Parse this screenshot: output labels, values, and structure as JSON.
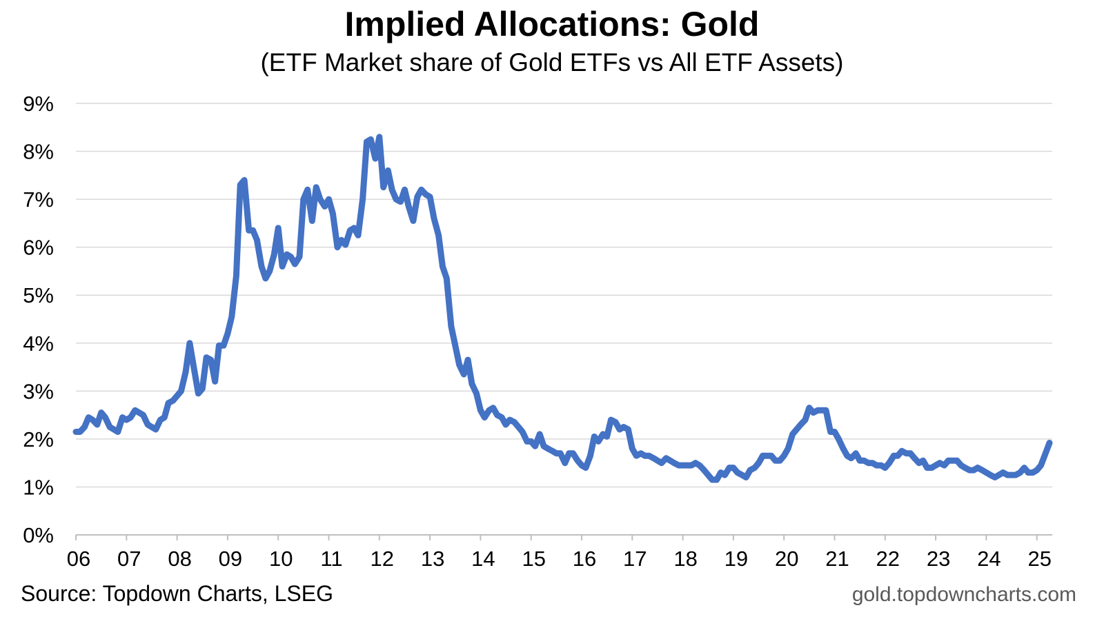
{
  "chart_data": {
    "type": "line",
    "title": "Implied Allocations: Gold",
    "subtitle": "(ETF Market share of Gold ETFs vs All ETF Assets)",
    "source": "Source: Topdown Charts, LSEG",
    "website": "gold.topdowncharts.com",
    "xlabel": "",
    "ylabel": "",
    "x_tick_labels": [
      "06",
      "07",
      "08",
      "09",
      "10",
      "11",
      "12",
      "13",
      "14",
      "15",
      "16",
      "17",
      "18",
      "19",
      "20",
      "21",
      "22",
      "23",
      "24",
      "25"
    ],
    "y_tick_labels": [
      "0%",
      "1%",
      "2%",
      "3%",
      "4%",
      "5%",
      "6%",
      "7%",
      "8%",
      "9%"
    ],
    "ylim": [
      0,
      9
    ],
    "xlim": [
      2006.0,
      2025.3
    ],
    "grid": "horizontal",
    "line_color": "#4472C4",
    "series": [
      {
        "points": [
          [
            2006.0,
            2.15
          ],
          [
            2006.08,
            2.15
          ],
          [
            2006.17,
            2.25
          ],
          [
            2006.25,
            2.45
          ],
          [
            2006.33,
            2.4
          ],
          [
            2006.42,
            2.3
          ],
          [
            2006.5,
            2.55
          ],
          [
            2006.58,
            2.45
          ],
          [
            2006.67,
            2.25
          ],
          [
            2006.75,
            2.2
          ],
          [
            2006.83,
            2.15
          ],
          [
            2006.92,
            2.45
          ],
          [
            2007.0,
            2.4
          ],
          [
            2007.08,
            2.45
          ],
          [
            2007.17,
            2.6
          ],
          [
            2007.25,
            2.55
          ],
          [
            2007.33,
            2.5
          ],
          [
            2007.42,
            2.3
          ],
          [
            2007.5,
            2.25
          ],
          [
            2007.58,
            2.2
          ],
          [
            2007.67,
            2.4
          ],
          [
            2007.75,
            2.45
          ],
          [
            2007.83,
            2.75
          ],
          [
            2007.92,
            2.8
          ],
          [
            2008.0,
            2.9
          ],
          [
            2008.08,
            3.0
          ],
          [
            2008.17,
            3.4
          ],
          [
            2008.25,
            4.0
          ],
          [
            2008.33,
            3.5
          ],
          [
            2008.42,
            2.95
          ],
          [
            2008.5,
            3.05
          ],
          [
            2008.58,
            3.7
          ],
          [
            2008.67,
            3.65
          ],
          [
            2008.75,
            3.2
          ],
          [
            2008.83,
            3.95
          ],
          [
            2008.92,
            3.95
          ],
          [
            2009.0,
            4.2
          ],
          [
            2009.08,
            4.55
          ],
          [
            2009.17,
            5.4
          ],
          [
            2009.25,
            7.3
          ],
          [
            2009.33,
            7.4
          ],
          [
            2009.42,
            6.35
          ],
          [
            2009.5,
            6.35
          ],
          [
            2009.58,
            6.15
          ],
          [
            2009.67,
            5.6
          ],
          [
            2009.75,
            5.35
          ],
          [
            2009.83,
            5.5
          ],
          [
            2009.92,
            5.85
          ],
          [
            2010.0,
            6.4
          ],
          [
            2010.08,
            5.6
          ],
          [
            2010.17,
            5.85
          ],
          [
            2010.25,
            5.8
          ],
          [
            2010.33,
            5.65
          ],
          [
            2010.42,
            5.8
          ],
          [
            2010.5,
            7.0
          ],
          [
            2010.58,
            7.2
          ],
          [
            2010.67,
            6.55
          ],
          [
            2010.75,
            7.25
          ],
          [
            2010.83,
            7.0
          ],
          [
            2010.92,
            6.85
          ],
          [
            2011.0,
            7.0
          ],
          [
            2011.08,
            6.7
          ],
          [
            2011.17,
            6.0
          ],
          [
            2011.25,
            6.15
          ],
          [
            2011.33,
            6.05
          ],
          [
            2011.42,
            6.35
          ],
          [
            2011.5,
            6.4
          ],
          [
            2011.58,
            6.25
          ],
          [
            2011.67,
            7.0
          ],
          [
            2011.75,
            8.2
          ],
          [
            2011.83,
            8.25
          ],
          [
            2011.92,
            7.85
          ],
          [
            2012.0,
            8.3
          ],
          [
            2012.08,
            7.25
          ],
          [
            2012.17,
            7.6
          ],
          [
            2012.25,
            7.2
          ],
          [
            2012.33,
            7.0
          ],
          [
            2012.42,
            6.95
          ],
          [
            2012.5,
            7.2
          ],
          [
            2012.58,
            6.85
          ],
          [
            2012.67,
            6.55
          ],
          [
            2012.75,
            7.05
          ],
          [
            2012.83,
            7.2
          ],
          [
            2012.92,
            7.1
          ],
          [
            2013.0,
            7.05
          ],
          [
            2013.08,
            6.6
          ],
          [
            2013.17,
            6.25
          ],
          [
            2013.25,
            5.6
          ],
          [
            2013.33,
            5.35
          ],
          [
            2013.42,
            4.35
          ],
          [
            2013.5,
            3.95
          ],
          [
            2013.58,
            3.55
          ],
          [
            2013.67,
            3.35
          ],
          [
            2013.75,
            3.65
          ],
          [
            2013.83,
            3.15
          ],
          [
            2013.92,
            2.95
          ],
          [
            2014.0,
            2.6
          ],
          [
            2014.08,
            2.45
          ],
          [
            2014.17,
            2.6
          ],
          [
            2014.25,
            2.65
          ],
          [
            2014.33,
            2.5
          ],
          [
            2014.42,
            2.45
          ],
          [
            2014.5,
            2.3
          ],
          [
            2014.58,
            2.4
          ],
          [
            2014.67,
            2.35
          ],
          [
            2014.75,
            2.25
          ],
          [
            2014.83,
            2.15
          ],
          [
            2014.92,
            1.95
          ],
          [
            2015.0,
            1.95
          ],
          [
            2015.08,
            1.85
          ],
          [
            2015.17,
            2.1
          ],
          [
            2015.25,
            1.85
          ],
          [
            2015.33,
            1.8
          ],
          [
            2015.42,
            1.75
          ],
          [
            2015.5,
            1.7
          ],
          [
            2015.58,
            1.7
          ],
          [
            2015.67,
            1.5
          ],
          [
            2015.75,
            1.7
          ],
          [
            2015.83,
            1.7
          ],
          [
            2015.92,
            1.55
          ],
          [
            2016.0,
            1.45
          ],
          [
            2016.08,
            1.4
          ],
          [
            2016.17,
            1.65
          ],
          [
            2016.25,
            2.05
          ],
          [
            2016.33,
            1.95
          ],
          [
            2016.42,
            2.1
          ],
          [
            2016.5,
            2.05
          ],
          [
            2016.58,
            2.4
          ],
          [
            2016.67,
            2.35
          ],
          [
            2016.75,
            2.2
          ],
          [
            2016.83,
            2.25
          ],
          [
            2016.92,
            2.2
          ],
          [
            2017.0,
            1.8
          ],
          [
            2017.08,
            1.65
          ],
          [
            2017.17,
            1.7
          ],
          [
            2017.25,
            1.65
          ],
          [
            2017.33,
            1.65
          ],
          [
            2017.42,
            1.6
          ],
          [
            2017.5,
            1.55
          ],
          [
            2017.58,
            1.5
          ],
          [
            2017.67,
            1.6
          ],
          [
            2017.75,
            1.55
          ],
          [
            2017.83,
            1.5
          ],
          [
            2017.92,
            1.45
          ],
          [
            2018.0,
            1.45
          ],
          [
            2018.08,
            1.45
          ],
          [
            2018.17,
            1.45
          ],
          [
            2018.25,
            1.5
          ],
          [
            2018.33,
            1.45
          ],
          [
            2018.42,
            1.35
          ],
          [
            2018.5,
            1.25
          ],
          [
            2018.58,
            1.15
          ],
          [
            2018.67,
            1.15
          ],
          [
            2018.75,
            1.3
          ],
          [
            2018.83,
            1.25
          ],
          [
            2018.92,
            1.4
          ],
          [
            2019.0,
            1.4
          ],
          [
            2019.08,
            1.3
          ],
          [
            2019.17,
            1.25
          ],
          [
            2019.25,
            1.2
          ],
          [
            2019.33,
            1.35
          ],
          [
            2019.42,
            1.4
          ],
          [
            2019.5,
            1.5
          ],
          [
            2019.58,
            1.65
          ],
          [
            2019.67,
            1.65
          ],
          [
            2019.75,
            1.65
          ],
          [
            2019.83,
            1.55
          ],
          [
            2019.92,
            1.55
          ],
          [
            2020.0,
            1.65
          ],
          [
            2020.08,
            1.8
          ],
          [
            2020.17,
            2.1
          ],
          [
            2020.25,
            2.2
          ],
          [
            2020.33,
            2.3
          ],
          [
            2020.42,
            2.4
          ],
          [
            2020.5,
            2.65
          ],
          [
            2020.58,
            2.55
          ],
          [
            2020.67,
            2.6
          ],
          [
            2020.75,
            2.6
          ],
          [
            2020.83,
            2.6
          ],
          [
            2020.92,
            2.15
          ],
          [
            2021.0,
            2.15
          ],
          [
            2021.08,
            2.0
          ],
          [
            2021.17,
            1.8
          ],
          [
            2021.25,
            1.65
          ],
          [
            2021.33,
            1.6
          ],
          [
            2021.42,
            1.7
          ],
          [
            2021.5,
            1.55
          ],
          [
            2021.58,
            1.55
          ],
          [
            2021.67,
            1.5
          ],
          [
            2021.75,
            1.5
          ],
          [
            2021.83,
            1.45
          ],
          [
            2021.92,
            1.45
          ],
          [
            2022.0,
            1.4
          ],
          [
            2022.08,
            1.5
          ],
          [
            2022.17,
            1.65
          ],
          [
            2022.25,
            1.65
          ],
          [
            2022.33,
            1.75
          ],
          [
            2022.42,
            1.7
          ],
          [
            2022.5,
            1.7
          ],
          [
            2022.58,
            1.6
          ],
          [
            2022.67,
            1.5
          ],
          [
            2022.75,
            1.55
          ],
          [
            2022.83,
            1.4
          ],
          [
            2022.92,
            1.4
          ],
          [
            2023.0,
            1.45
          ],
          [
            2023.08,
            1.5
          ],
          [
            2023.17,
            1.45
          ],
          [
            2023.25,
            1.55
          ],
          [
            2023.33,
            1.55
          ],
          [
            2023.42,
            1.55
          ],
          [
            2023.5,
            1.45
          ],
          [
            2023.58,
            1.4
          ],
          [
            2023.67,
            1.35
          ],
          [
            2023.75,
            1.35
          ],
          [
            2023.83,
            1.4
          ],
          [
            2023.92,
            1.35
          ],
          [
            2024.0,
            1.3
          ],
          [
            2024.08,
            1.25
          ],
          [
            2024.17,
            1.2
          ],
          [
            2024.25,
            1.25
          ],
          [
            2024.33,
            1.3
          ],
          [
            2024.42,
            1.25
          ],
          [
            2024.5,
            1.25
          ],
          [
            2024.58,
            1.25
          ],
          [
            2024.67,
            1.3
          ],
          [
            2024.75,
            1.4
          ],
          [
            2024.83,
            1.3
          ],
          [
            2024.92,
            1.3
          ],
          [
            2025.0,
            1.35
          ],
          [
            2025.08,
            1.45
          ],
          [
            2025.17,
            1.7
          ],
          [
            2025.25,
            1.92
          ]
        ]
      }
    ]
  }
}
